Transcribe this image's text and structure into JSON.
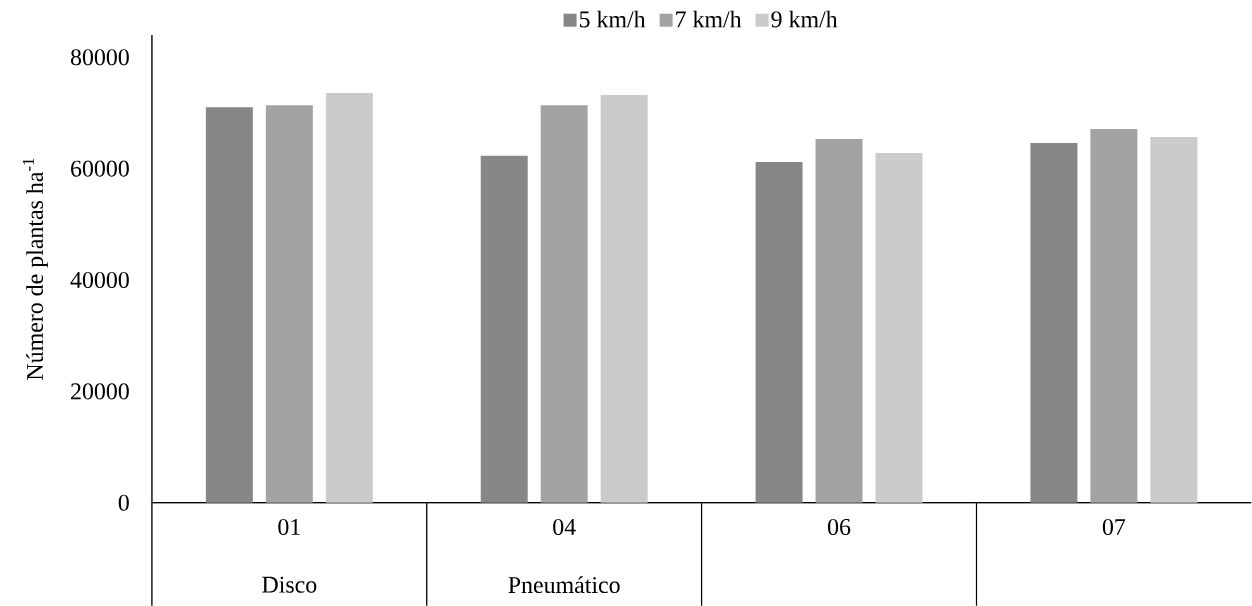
{
  "chart_data": {
    "type": "bar",
    "ylabel": "Número de plantas ha$^{-1}$",
    "categories": [
      "01",
      "04",
      "06",
      "07"
    ],
    "series": [
      {
        "name": "5 km/h",
        "color": "#878787",
        "values": [
          71000,
          62300,
          61200,
          64600
        ]
      },
      {
        "name": "7 km/h",
        "color": "#a3a3a3",
        "values": [
          71400,
          71400,
          65300,
          67100
        ]
      },
      {
        "name": "9 km/h",
        "color": "#cbcbcb",
        "values": [
          73600,
          73200,
          62800,
          65700
        ]
      }
    ],
    "annotations": [
      "Disco",
      "Pneumático"
    ],
    "ylim": [
      0,
      84000
    ],
    "yticks": [
      0,
      20000,
      40000,
      60000,
      80000
    ],
    "grid": false,
    "legend": "top"
  }
}
